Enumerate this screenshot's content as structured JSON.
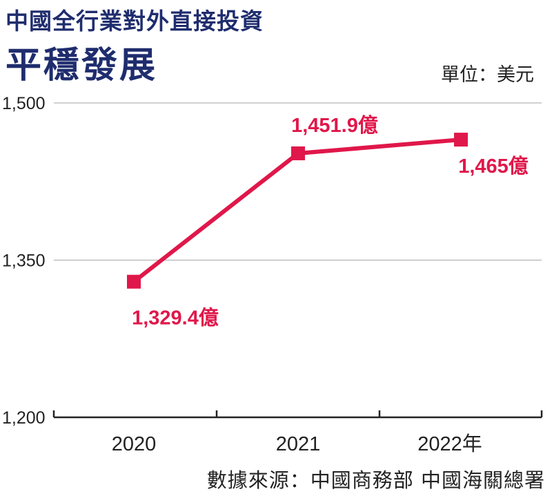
{
  "header": {
    "title": "中國全行業對外直接投資",
    "subtitle": "平穩發展",
    "unit": "單位：美元"
  },
  "source": "數據來源：中國商務部 中國海關總署",
  "colors": {
    "line": "#e0174a",
    "title": "#1f2d6e",
    "grid": "#b3b3b3",
    "axis": "#222222"
  },
  "chart_data": {
    "type": "line",
    "x": [
      "2020",
      "2021",
      "2022年"
    ],
    "series": [
      {
        "values": [
          1329.4,
          1451.9,
          1465
        ]
      }
    ],
    "data_labels": [
      "1,329.4億",
      "1,451.9億",
      "1,465億"
    ],
    "y_ticks": [
      "1,500",
      "1,350",
      "1,200"
    ],
    "y_tick_values": [
      1500,
      1350,
      1200
    ],
    "ylim": [
      1200,
      1500
    ],
    "grid": true,
    "marker": "square"
  }
}
